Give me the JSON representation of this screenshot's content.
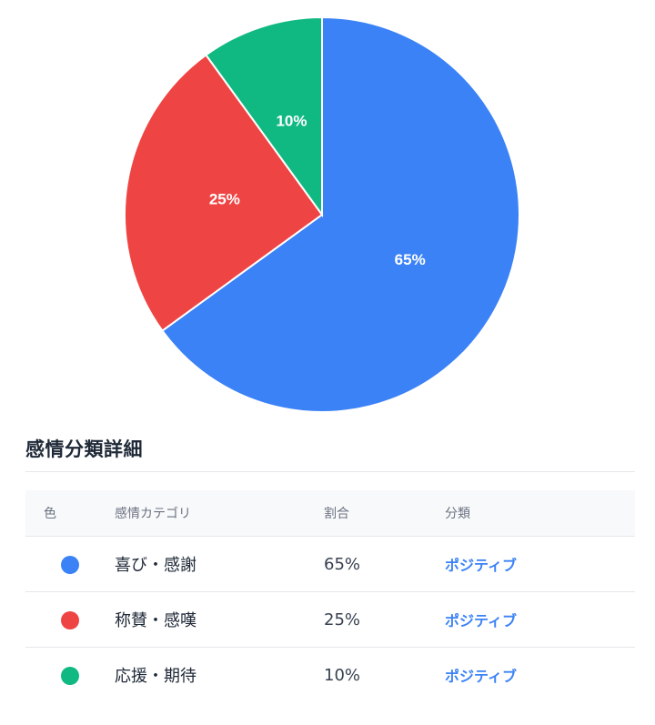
{
  "chart_data": {
    "type": "pie",
    "categories": [
      "喜び・感謝",
      "称賛・感嘆",
      "応援・期待"
    ],
    "values": [
      65,
      25,
      10
    ],
    "labels": [
      "65%",
      "25%",
      "10%"
    ],
    "colors": [
      "#3b82f6",
      "#ef4444",
      "#10b981"
    ],
    "title": ""
  },
  "details": {
    "title": "感情分類詳細",
    "headers": {
      "color": "色",
      "category": "感情カテゴリ",
      "percent": "割合",
      "classification": "分類"
    },
    "rows": [
      {
        "category": "喜び・感謝",
        "percent": "65%",
        "classification": "ポジティブ",
        "color": "#3b82f6"
      },
      {
        "category": "称賛・感嘆",
        "percent": "25%",
        "classification": "ポジティブ",
        "color": "#ef4444"
      },
      {
        "category": "応援・期待",
        "percent": "10%",
        "classification": "ポジティブ",
        "color": "#10b981"
      }
    ]
  }
}
